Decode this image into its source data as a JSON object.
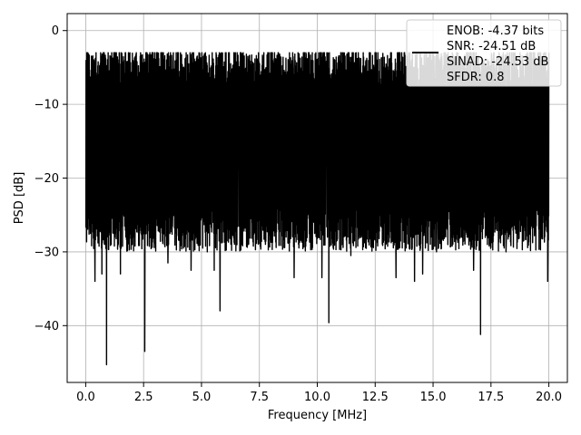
{
  "chart_data": {
    "type": "line",
    "xlabel": "Frequency [MHz]",
    "ylabel": "PSD [dB]",
    "xlim": [
      -0.8,
      20.8
    ],
    "ylim": [
      -47.7,
      2.3
    ],
    "xticks": [
      0.0,
      2.5,
      5.0,
      7.5,
      10.0,
      12.5,
      15.0,
      17.5,
      20.0
    ],
    "xtick_labels": [
      "0.0",
      "2.5",
      "5.0",
      "7.5",
      "10.0",
      "12.5",
      "15.0",
      "17.5",
      "20.0"
    ],
    "yticks": [
      0,
      -10,
      -20,
      -30,
      -40
    ],
    "ytick_labels": [
      "0",
      "−10",
      "−20",
      "−30",
      "−40"
    ],
    "grid": true,
    "legend_position": "top-right",
    "series": [
      {
        "color": "#000000",
        "band_low": -26,
        "band_high": -6,
        "envelope_top": -3,
        "x": [
          0.05,
          0.2,
          0.4,
          0.55,
          0.7,
          0.9,
          1.1,
          1.3,
          1.5,
          2.55,
          3.55,
          3.75,
          4.25,
          4.55,
          5.25,
          5.55,
          5.8,
          6.1,
          6.95,
          7.35,
          9.0,
          10.2,
          10.5,
          11.1,
          11.45,
          13.4,
          14.2,
          14.55,
          15.15,
          16.75,
          17.05,
          18.15,
          18.95,
          19.95
        ],
        "y": [
          -3.0,
          -26.0,
          -34.0,
          -25.0,
          -33.0,
          -45.3,
          -29.0,
          -27.5,
          -33.0,
          -43.5,
          -31.5,
          -26.0,
          -29.0,
          -32.5,
          -30.0,
          -32.5,
          -38.0,
          -28.5,
          -29.0,
          -27.0,
          -33.5,
          -33.5,
          -39.6,
          -29.0,
          -30.5,
          -33.5,
          -34.0,
          -33.0,
          -30.0,
          -32.5,
          -41.2,
          -30.0,
          -26.5,
          -34.0
        ]
      }
    ],
    "legend_lines": [
      "ENOB: -4.37 bits",
      "SNR: -24.51 dB",
      "SINAD: -24.53 dB",
      "SFDR: 0.8"
    ]
  }
}
